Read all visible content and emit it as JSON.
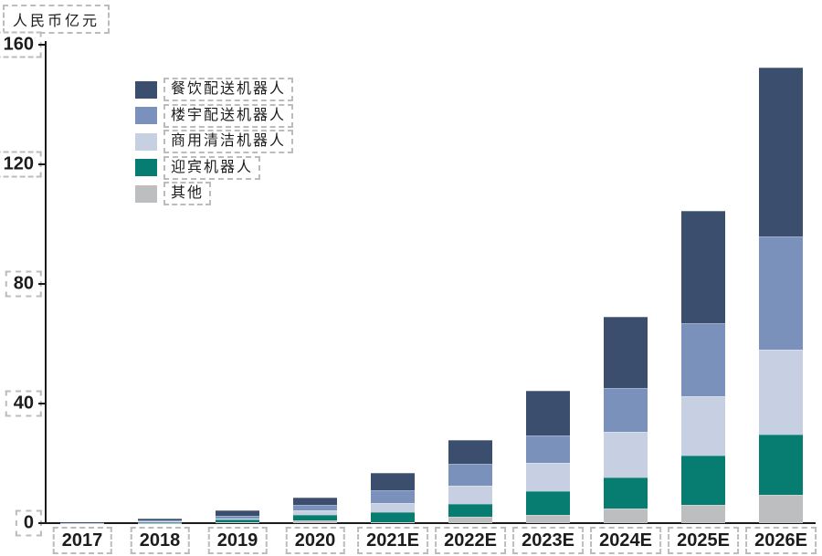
{
  "chart_data": {
    "type": "bar",
    "stacked": true,
    "title": "",
    "ylabel": "人民币亿元",
    "xlabel": "",
    "ylim": [
      0,
      160
    ],
    "yticks": [
      0,
      40,
      80,
      120,
      160
    ],
    "grid": false,
    "legend_position": "upper-left-inside",
    "categories": [
      "2017",
      "2018",
      "2019",
      "2020",
      "2021E",
      "2022E",
      "2023E",
      "2024E",
      "2025E",
      "2026E"
    ],
    "series": [
      {
        "name": "餐饮配送机器人",
        "color": "#3b4e6e",
        "values": [
          0.2,
          0.6,
          2.0,
          2.7,
          5.8,
          7.9,
          15.0,
          23.8,
          37.6,
          56.5
        ]
      },
      {
        "name": "楼宇配送机器人",
        "color": "#7991bb",
        "values": [
          0.1,
          0.4,
          0.9,
          1.8,
          4.3,
          7.3,
          9.2,
          14.7,
          24.4,
          37.9
        ]
      },
      {
        "name": "商用清洁机器人",
        "color": "#c7d0e3",
        "values": [
          0.05,
          0.2,
          0.3,
          1.5,
          3.1,
          6.1,
          9.5,
          15.3,
          19.8,
          28.4
        ]
      },
      {
        "name": "迎宾机器人",
        "color": "#077c70",
        "values": [
          0.03,
          0.2,
          0.8,
          1.8,
          3.4,
          4.3,
          7.9,
          10.4,
          16.5,
          20.2
        ]
      },
      {
        "name": "其他",
        "color": "#bdbec0",
        "values": [
          0.02,
          0.1,
          0.3,
          0.9,
          0.3,
          2.1,
          2.7,
          4.9,
          6.1,
          9.5
        ]
      }
    ],
    "totals": [
      0.4,
      1.5,
      4.3,
      8.7,
      16.9,
      27.7,
      44.3,
      69.1,
      104.4,
      152.5
    ],
    "axis_color": "#1a1a1a",
    "text_color": "#1c1c1c",
    "annotation_box_color": "#bcbcbc"
  }
}
